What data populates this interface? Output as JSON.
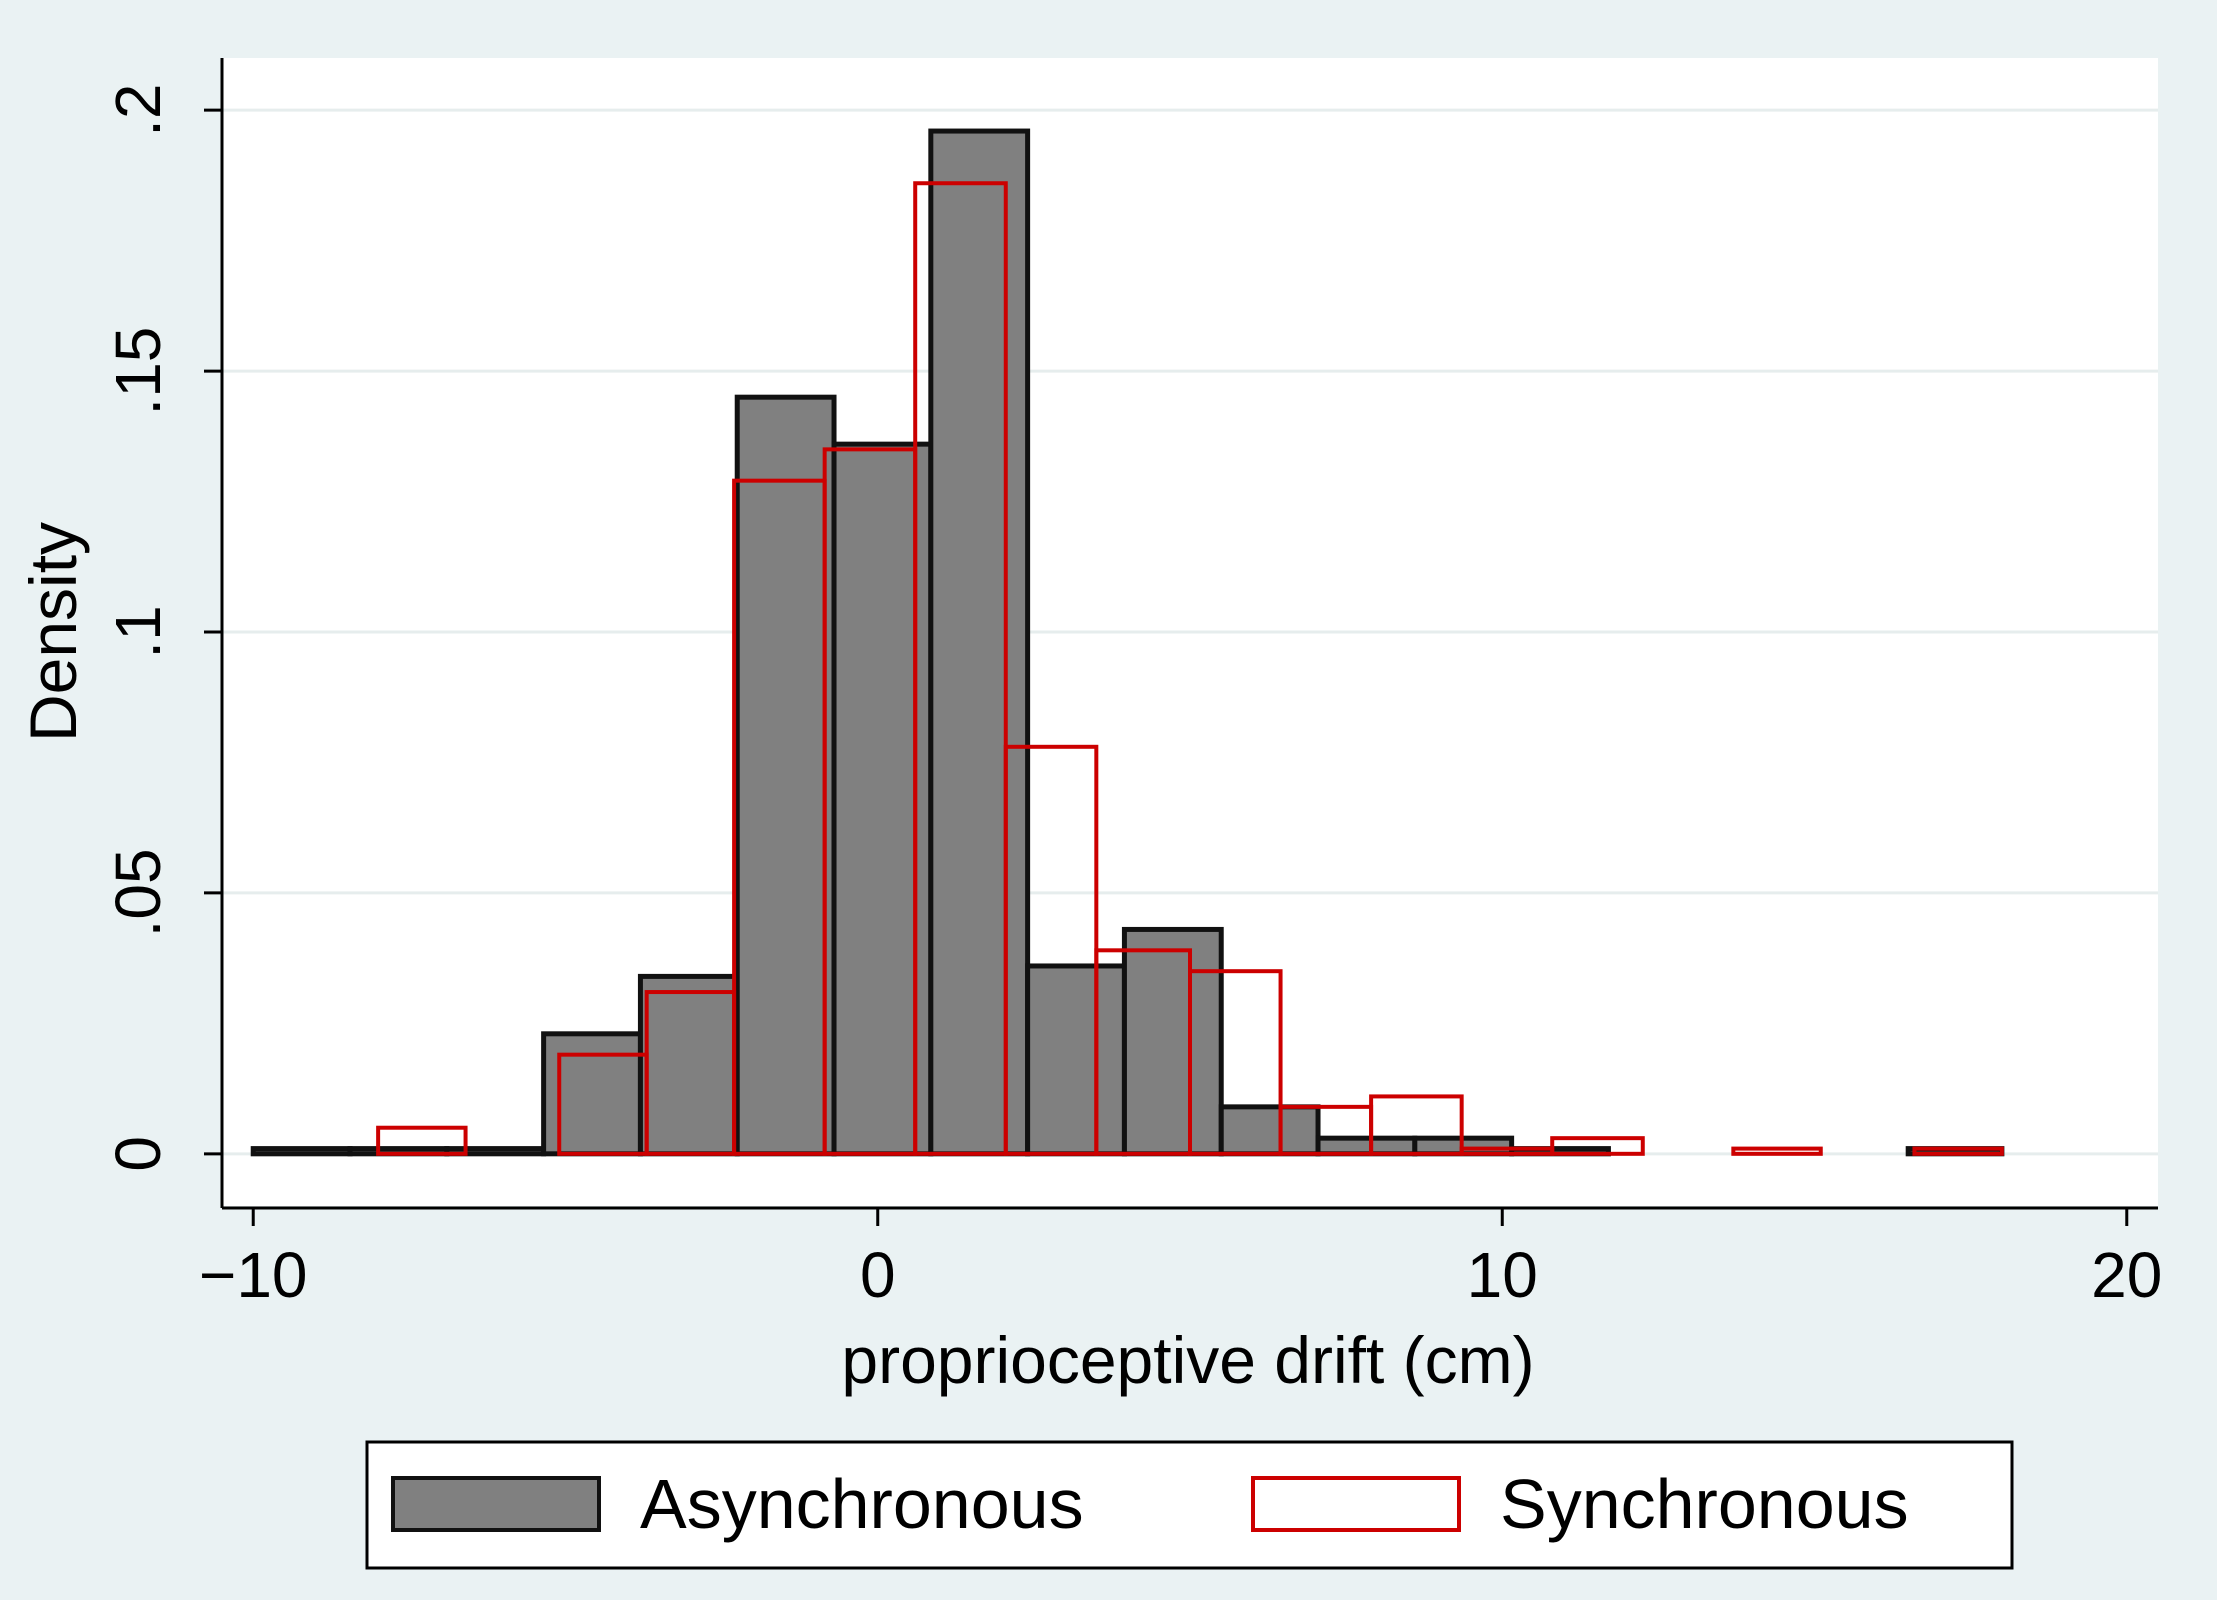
{
  "chart_data": {
    "type": "bar",
    "histogram": true,
    "xlabel": "proprioceptive drift (cm)",
    "ylabel": "Density",
    "xlim": [
      -10.5,
      20.5
    ],
    "ylim": [
      -0.01,
      0.21
    ],
    "x_ticks": [
      -10,
      0,
      10,
      20
    ],
    "x_tick_labels": [
      "−10",
      "0",
      "10",
      "20"
    ],
    "y_ticks": [
      0,
      0.05,
      0.1,
      0.15,
      0.2
    ],
    "y_tick_labels": [
      "0",
      ".05",
      ".1",
      ".15",
      ".2"
    ],
    "grid": true,
    "legend_position": "bottom",
    "series": [
      {
        "name": "Asynchronous",
        "style": "filled",
        "fill": "#808080",
        "stroke": "#111111",
        "bins": [
          {
            "x0": -10.0,
            "x1": -8.45,
            "value": 0.001
          },
          {
            "x0": -8.45,
            "x1": -6.9,
            "value": 0.001
          },
          {
            "x0": -6.9,
            "x1": -5.35,
            "value": 0.001
          },
          {
            "x0": -5.35,
            "x1": -3.8,
            "value": 0.023
          },
          {
            "x0": -3.8,
            "x1": -2.25,
            "value": 0.034
          },
          {
            "x0": -2.25,
            "x1": -0.7,
            "value": 0.145
          },
          {
            "x0": -0.7,
            "x1": 0.85,
            "value": 0.136
          },
          {
            "x0": 0.85,
            "x1": 2.4,
            "value": 0.196
          },
          {
            "x0": 2.4,
            "x1": 3.95,
            "value": 0.036
          },
          {
            "x0": 3.95,
            "x1": 5.5,
            "value": 0.043
          },
          {
            "x0": 5.5,
            "x1": 7.05,
            "value": 0.009
          },
          {
            "x0": 7.05,
            "x1": 8.6,
            "value": 0.003
          },
          {
            "x0": 8.6,
            "x1": 10.15,
            "value": 0.003
          },
          {
            "x0": 10.15,
            "x1": 11.7,
            "value": 0.001
          },
          {
            "x0": 16.5,
            "x1": 18.0,
            "value": 0.001
          }
        ]
      },
      {
        "name": "Synchronous",
        "style": "outline",
        "fill": "none",
        "stroke": "#cc0000",
        "bins": [
          {
            "x0": -8.0,
            "x1": -6.6,
            "value": 0.005
          },
          {
            "x0": -5.1,
            "x1": -3.7,
            "value": 0.019
          },
          {
            "x0": -3.7,
            "x1": -2.3,
            "value": 0.031
          },
          {
            "x0": -2.3,
            "x1": -0.85,
            "value": 0.129
          },
          {
            "x0": -0.85,
            "x1": 0.6,
            "value": 0.135
          },
          {
            "x0": 0.6,
            "x1": 2.05,
            "value": 0.186
          },
          {
            "x0": 2.05,
            "x1": 3.5,
            "value": 0.078
          },
          {
            "x0": 3.5,
            "x1": 5.0,
            "value": 0.039
          },
          {
            "x0": 5.0,
            "x1": 6.45,
            "value": 0.035
          },
          {
            "x0": 6.45,
            "x1": 7.9,
            "value": 0.009
          },
          {
            "x0": 7.9,
            "x1": 9.35,
            "value": 0.011
          },
          {
            "x0": 9.35,
            "x1": 10.8,
            "value": 0.001
          },
          {
            "x0": 10.8,
            "x1": 12.25,
            "value": 0.003
          },
          {
            "x0": 13.7,
            "x1": 15.1,
            "value": 0.001
          },
          {
            "x0": 16.6,
            "x1": 18.0,
            "value": 0.001
          }
        ]
      }
    ]
  }
}
